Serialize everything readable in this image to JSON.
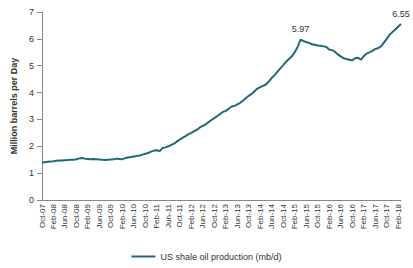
{
  "chart_data": {
    "type": "line",
    "y_label": "Million barrels per Day",
    "categories": [
      "Oct-07",
      null,
      null,
      null,
      "Feb-08",
      null,
      null,
      null,
      "Jun-08",
      null,
      null,
      null,
      "Oct-08",
      null,
      null,
      null,
      "Feb-09",
      null,
      null,
      null,
      "Jun-09",
      null,
      null,
      null,
      "Oct-09",
      null,
      null,
      null,
      "Feb-10",
      null,
      null,
      null,
      "Jun-10",
      null,
      null,
      null,
      "Oct-10",
      null,
      null,
      null,
      "Feb-11",
      null,
      null,
      null,
      "Jun-11",
      null,
      null,
      null,
      "Oct-11",
      null,
      null,
      null,
      "Feb-12",
      null,
      null,
      null,
      "Jun-12",
      null,
      null,
      null,
      "Oct-12",
      null,
      null,
      null,
      "Feb-13",
      null,
      null,
      null,
      "Jun-13",
      null,
      null,
      null,
      "Oct-13",
      null,
      null,
      null,
      "Feb-14",
      null,
      null,
      null,
      "Jun-14",
      null,
      null,
      null,
      "Oct-14",
      null,
      null,
      null,
      "Feb-15",
      null,
      null,
      null,
      "Jun-15",
      null,
      null,
      null,
      "Oct-15",
      null,
      null,
      null,
      "Feb-16",
      null,
      null,
      null,
      "Jun-16",
      null,
      null,
      null,
      "Oct-16",
      null,
      null,
      null,
      "Feb-17",
      null,
      null,
      null,
      "Jun-17",
      null,
      null,
      null,
      "Oct-17",
      null,
      null,
      null,
      "Feb-18",
      null
    ],
    "series": [
      {
        "name": "US shale oil production (mb/d)",
        "color": "#1f6b78",
        "values": [
          1.4,
          1.41,
          1.42,
          1.43,
          1.44,
          1.46,
          1.47,
          1.47,
          1.48,
          1.49,
          1.5,
          1.5,
          1.52,
          1.55,
          1.56,
          1.54,
          1.53,
          1.52,
          1.53,
          1.52,
          1.51,
          1.5,
          1.49,
          1.5,
          1.51,
          1.52,
          1.54,
          1.53,
          1.52,
          1.56,
          1.58,
          1.6,
          1.62,
          1.64,
          1.66,
          1.69,
          1.72,
          1.75,
          1.8,
          1.84,
          1.85,
          1.82,
          1.94,
          1.96,
          2.0,
          2.05,
          2.1,
          2.18,
          2.25,
          2.32,
          2.38,
          2.45,
          2.5,
          2.56,
          2.62,
          2.7,
          2.76,
          2.82,
          2.9,
          2.98,
          3.05,
          3.12,
          3.2,
          3.28,
          3.32,
          3.4,
          3.48,
          3.5,
          3.56,
          3.62,
          3.7,
          3.8,
          3.88,
          3.95,
          4.05,
          4.15,
          4.2,
          4.25,
          4.3,
          4.42,
          4.55,
          4.65,
          4.78,
          4.9,
          5.02,
          5.15,
          5.25,
          5.35,
          5.5,
          5.7,
          5.97,
          5.92,
          5.88,
          5.85,
          5.8,
          5.78,
          5.75,
          5.74,
          5.72,
          5.7,
          5.6,
          5.58,
          5.52,
          5.42,
          5.35,
          5.28,
          5.25,
          5.22,
          5.2,
          5.28,
          5.3,
          5.22,
          5.35,
          5.45,
          5.5,
          5.55,
          5.62,
          5.65,
          5.72,
          5.85,
          6.0,
          6.15,
          6.25,
          6.35,
          6.45,
          6.55
        ],
        "value_labels": [
          null,
          null,
          null,
          null,
          null,
          null,
          null,
          null,
          null,
          null,
          null,
          null,
          null,
          null,
          null,
          null,
          null,
          null,
          null,
          null,
          null,
          null,
          null,
          null,
          null,
          null,
          null,
          null,
          null,
          null,
          null,
          null,
          null,
          null,
          null,
          null,
          null,
          null,
          null,
          null,
          null,
          null,
          null,
          null,
          null,
          null,
          null,
          null,
          null,
          null,
          null,
          null,
          null,
          null,
          null,
          null,
          null,
          null,
          null,
          null,
          null,
          null,
          null,
          null,
          null,
          null,
          null,
          null,
          null,
          null,
          null,
          null,
          null,
          null,
          null,
          null,
          null,
          null,
          null,
          null,
          null,
          null,
          null,
          null,
          null,
          null,
          null,
          null,
          null,
          null,
          "5.97",
          null,
          null,
          null,
          null,
          null,
          null,
          null,
          null,
          null,
          null,
          null,
          null,
          null,
          null,
          null,
          null,
          null,
          null,
          null,
          null,
          null,
          null,
          null,
          null,
          null,
          null,
          null,
          null,
          null,
          null,
          null,
          null,
          null,
          null,
          "6.55"
        ]
      }
    ],
    "ylim": [
      0,
      7
    ],
    "yticks": [
      0,
      1,
      2,
      3,
      4,
      5,
      6,
      7
    ],
    "grid": false,
    "legend": "bottom"
  }
}
